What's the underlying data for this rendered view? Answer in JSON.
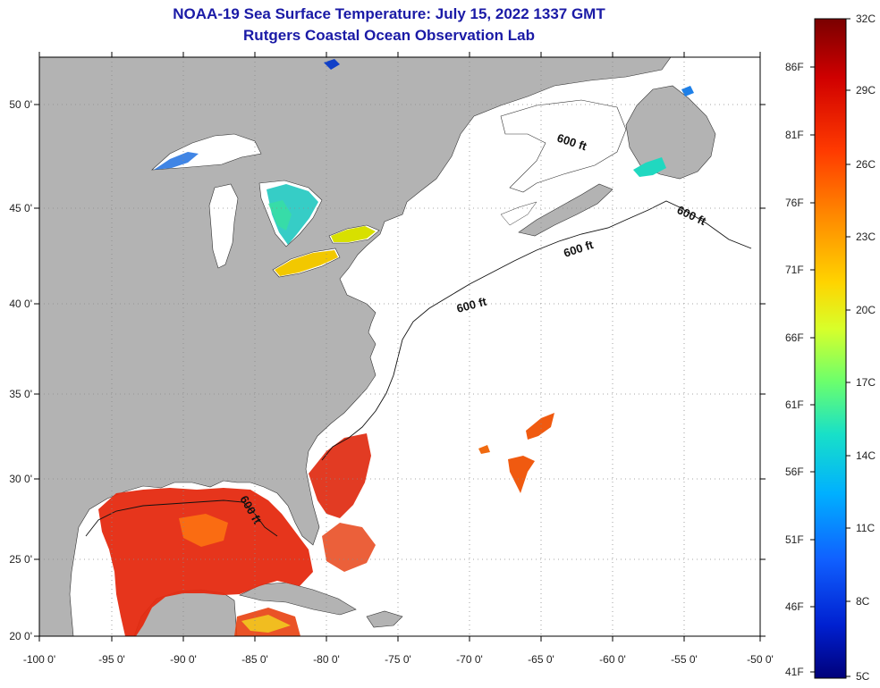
{
  "title": {
    "line1": "NOAA-19 Sea Surface Temperature:  July 15, 2022 1337 GMT",
    "line2": "Rutgers Coastal Ocean Observation Lab"
  },
  "map": {
    "lon_labels": [
      "-100 0'",
      "-95 0'",
      "-90 0'",
      "-85 0'",
      "-80 0'",
      "-75 0'",
      "-70 0'",
      "-65 0'",
      "-60 0'",
      "-55 0'",
      "-50 0'"
    ],
    "lat_labels": [
      "50 0'",
      "45 0'",
      "40 0'",
      "35 0'",
      "30 0'",
      "25 0'",
      "20 0'"
    ],
    "contour_label": "600 ft",
    "colors": {
      "land": "#b3b3b3",
      "ocean": "#ffffff",
      "grid": "#8a8a8a"
    }
  },
  "colorbar": {
    "celsius_labels": [
      "32C",
      "29C",
      "26C",
      "23C",
      "20C",
      "17C",
      "14C",
      "11C",
      "8C",
      "5C"
    ],
    "fahrenheit_labels": [
      "86F",
      "81F",
      "76F",
      "71F",
      "66F",
      "61F",
      "56F",
      "51F",
      "46F",
      "41F"
    ],
    "gradient": [
      "#7a0000",
      "#d00000",
      "#ff3a00",
      "#ff8a00",
      "#ffd400",
      "#d8ff2a",
      "#6cff6c",
      "#18e0c8",
      "#00b0ff",
      "#1060ff",
      "#0020d0",
      "#00007a"
    ]
  }
}
